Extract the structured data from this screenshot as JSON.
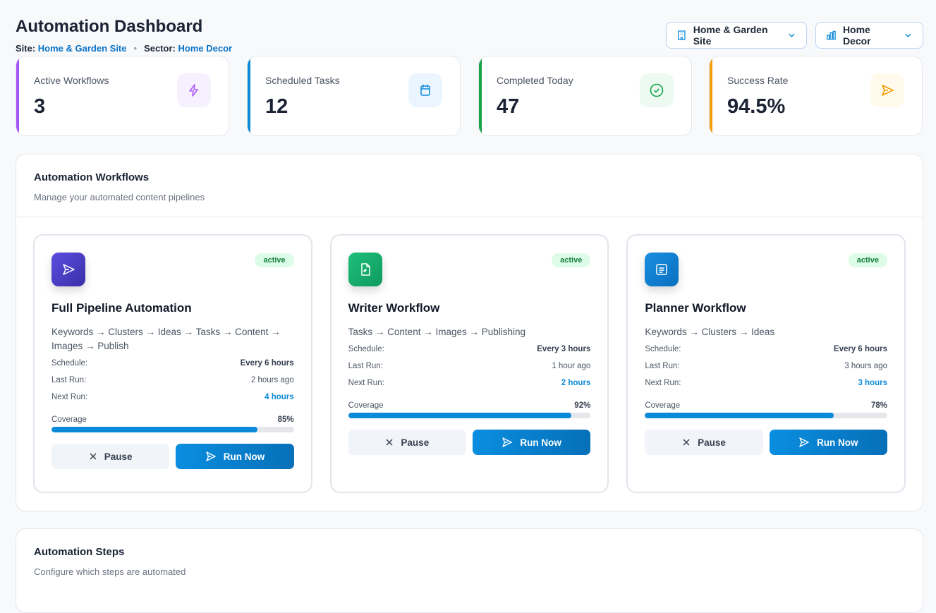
{
  "header": {
    "title": "Automation Dashboard",
    "site_label": "Site:",
    "site_value": "Home & Garden Site",
    "sector_label": "Sector:",
    "sector_value": "Home Decor",
    "site_select": "Home & Garden Site",
    "sector_select": "Home Decor"
  },
  "stats": [
    {
      "label": "Active Workflows",
      "value": "3",
      "icon": "bolt-icon",
      "color": "#a855f7"
    },
    {
      "label": "Scheduled Tasks",
      "value": "12",
      "icon": "calendar-icon",
      "color": "#0b8ad8"
    },
    {
      "label": "Completed Today",
      "value": "47",
      "icon": "check-circle-icon",
      "color": "#16a34a"
    },
    {
      "label": "Success Rate",
      "value": "94.5%",
      "icon": "send-icon",
      "color": "#f59e0b"
    }
  ],
  "workflows": {
    "title": "Automation Workflows",
    "subtitle": "Manage your automated content pipelines",
    "labels": {
      "schedule": "Schedule:",
      "last_run": "Last Run:",
      "next_run": "Next Run:",
      "coverage": "Coverage",
      "pause": "Pause",
      "run": "Run Now"
    },
    "items": [
      {
        "name": "Full Pipeline Automation",
        "status": "active",
        "steps": "Keywords → Clusters → Ideas → Tasks → Content → Images → Publish",
        "schedule": "Every 6 hours",
        "last_run": "2 hours ago",
        "next_run": "4 hours",
        "coverage_label": "85%",
        "coverage": 85,
        "icon": "send-icon"
      },
      {
        "name": "Writer Workflow",
        "status": "active",
        "steps": "Tasks → Content → Images → Publishing",
        "schedule": "Every 3 hours",
        "last_run": "1 hour ago",
        "next_run": "2 hours",
        "coverage_label": "92%",
        "coverage": 92,
        "icon": "document-icon"
      },
      {
        "name": "Planner Workflow",
        "status": "active",
        "steps": "Keywords → Clusters → Ideas",
        "schedule": "Every 6 hours",
        "last_run": "3 hours ago",
        "next_run": "3 hours",
        "coverage_label": "78%",
        "coverage": 78,
        "icon": "list-icon"
      }
    ]
  },
  "steps": {
    "title": "Automation Steps",
    "subtitle": "Configure which steps are automated"
  }
}
